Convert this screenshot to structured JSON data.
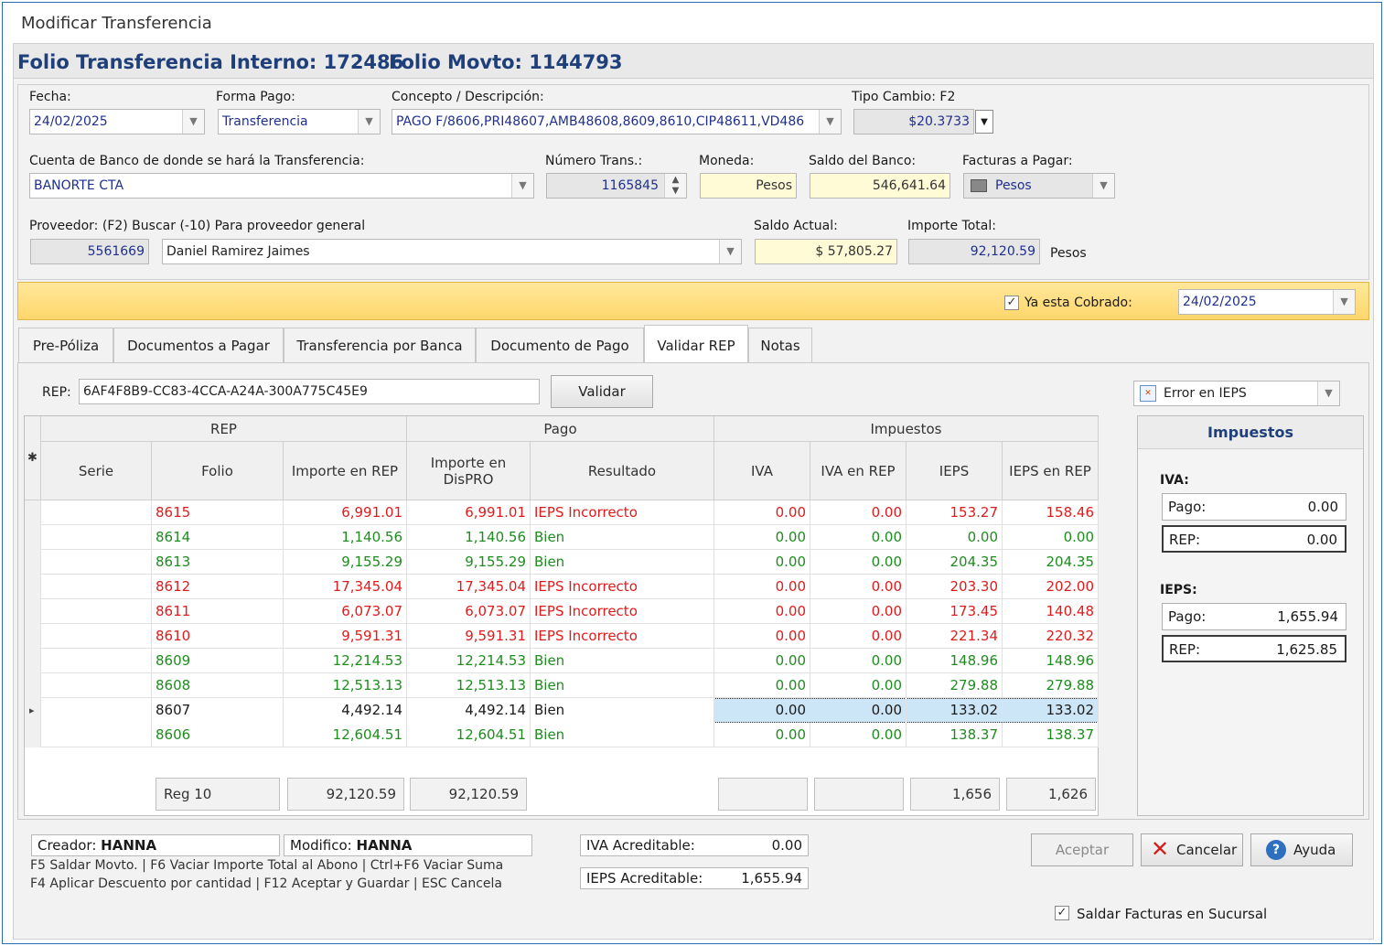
{
  "window": {
    "title": "Modificar Transferencia"
  },
  "folio": {
    "interno": "Folio Transferencia Interno: 172486",
    "movto": "Folio Movto: 1144793"
  },
  "header": {
    "fecha_label": "Fecha:",
    "fecha": "24/02/2025",
    "forma_pago_label": "Forma Pago:",
    "forma_pago": "Transferencia",
    "concepto_label": "Concepto / Descripción:",
    "concepto": "PAGO F/8606,PRI48607,AMB48608,8609,8610,CIP48611,VD486",
    "tipo_cambio_label": "Tipo Cambio: F2",
    "tipo_cambio": "$20.3733",
    "cuenta_label": "Cuenta de Banco de donde se hará la Transferencia:",
    "cuenta": "BANORTE CTA",
    "num_trans_label": "Número Trans.:",
    "num_trans": "1165845",
    "moneda_label": "Moneda:",
    "moneda": "Pesos",
    "saldo_banco_label": "Saldo del Banco:",
    "saldo_banco": "546,641.64",
    "facturas_label": "Facturas a Pagar:",
    "facturas": "Pesos",
    "proveedor_label": "Proveedor: (F2) Buscar   (-10) Para proveedor general",
    "proveedor_id": "5561669",
    "proveedor_nombre": "Daniel Ramirez Jaimes",
    "saldo_actual_label": "Saldo Actual:",
    "saldo_actual": "$ 57,805.27",
    "importe_total_label": "Importe Total:",
    "importe_total": "92,120.59",
    "importe_moneda": "Pesos"
  },
  "cobrado": {
    "label": "Ya esta Cobrado:",
    "fecha": "24/02/2025",
    "checked": true
  },
  "tabs": [
    "Pre-Póliza",
    "Documentos a Pagar",
    "Transferencia por Banca",
    "Documento de Pago",
    "Validar REP",
    "Notas"
  ],
  "rep": {
    "label": "REP:",
    "value": "6AF4F8B9-CC83-4CCA-A24A-300A775C45E9",
    "validar": "Validar",
    "filtro": "Error en IEPS"
  },
  "grid": {
    "groups": {
      "rep": "REP",
      "pago": "Pago",
      "impuestos": "Impuestos"
    },
    "columns": [
      "Serie",
      "Folio",
      "Importe en REP",
      "Importe en DisPRO",
      "Resultado",
      "IVA",
      "IVA en REP",
      "IEPS",
      "IEPS en REP"
    ],
    "rows": [
      {
        "folio": "8615",
        "imp_rep": "6,991.01",
        "imp_dis": "6,991.01",
        "resultado": "IEPS Incorrecto",
        "iva": "0.00",
        "iva_rep": "0.00",
        "ieps": "153.27",
        "ieps_rep": "158.46",
        "status": "bad"
      },
      {
        "folio": "8614",
        "imp_rep": "1,140.56",
        "imp_dis": "1,140.56",
        "resultado": "Bien",
        "iva": "0.00",
        "iva_rep": "0.00",
        "ieps": "0.00",
        "ieps_rep": "0.00",
        "status": "ok"
      },
      {
        "folio": "8613",
        "imp_rep": "9,155.29",
        "imp_dis": "9,155.29",
        "resultado": "Bien",
        "iva": "0.00",
        "iva_rep": "0.00",
        "ieps": "204.35",
        "ieps_rep": "204.35",
        "status": "ok"
      },
      {
        "folio": "8612",
        "imp_rep": "17,345.04",
        "imp_dis": "17,345.04",
        "resultado": "IEPS Incorrecto",
        "iva": "0.00",
        "iva_rep": "0.00",
        "ieps": "203.30",
        "ieps_rep": "202.00",
        "status": "bad"
      },
      {
        "folio": "8611",
        "imp_rep": "6,073.07",
        "imp_dis": "6,073.07",
        "resultado": "IEPS Incorrecto",
        "iva": "0.00",
        "iva_rep": "0.00",
        "ieps": "173.45",
        "ieps_rep": "140.48",
        "status": "bad"
      },
      {
        "folio": "8610",
        "imp_rep": "9,591.31",
        "imp_dis": "9,591.31",
        "resultado": "IEPS Incorrecto",
        "iva": "0.00",
        "iva_rep": "0.00",
        "ieps": "221.34",
        "ieps_rep": "220.32",
        "status": "bad"
      },
      {
        "folio": "8609",
        "imp_rep": "12,214.53",
        "imp_dis": "12,214.53",
        "resultado": "Bien",
        "iva": "0.00",
        "iva_rep": "0.00",
        "ieps": "148.96",
        "ieps_rep": "148.96",
        "status": "ok"
      },
      {
        "folio": "8608",
        "imp_rep": "12,513.13",
        "imp_dis": "12,513.13",
        "resultado": "Bien",
        "iva": "0.00",
        "iva_rep": "0.00",
        "ieps": "279.88",
        "ieps_rep": "279.88",
        "status": "ok"
      },
      {
        "folio": "8607",
        "imp_rep": "4,492.14",
        "imp_dis": "4,492.14",
        "resultado": "Bien",
        "iva": "0.00",
        "iva_rep": "0.00",
        "ieps": "133.02",
        "ieps_rep": "133.02",
        "status": "ok"
      },
      {
        "folio": "8606",
        "imp_rep": "12,604.51",
        "imp_dis": "12,604.51",
        "resultado": "Bien",
        "iva": "0.00",
        "iva_rep": "0.00",
        "ieps": "138.37",
        "ieps_rep": "138.37",
        "status": "ok"
      }
    ],
    "footer": {
      "reg": "Reg 10",
      "imp_rep": "92,120.59",
      "imp_dis": "92,120.59",
      "ieps": "1,656",
      "ieps_rep": "1,626"
    }
  },
  "impuestos": {
    "title": "Impuestos",
    "iva_label": "IVA:",
    "iva_pago_label": "Pago:",
    "iva_pago": "0.00",
    "iva_rep_label": "REP:",
    "iva_rep": "0.00",
    "ieps_label": "IEPS:",
    "ieps_pago_label": "Pago:",
    "ieps_pago": "1,655.94",
    "ieps_rep_label": "REP:",
    "ieps_rep": "1,625.85"
  },
  "status": {
    "creador_label": "Creador:",
    "creador": "HANNA",
    "modifico_label": "Modifico:",
    "modifico": "HANNA",
    "shortcuts1": "F5 Saldar Movto. | F6 Vaciar Importe Total al Abono | Ctrl+F6 Vaciar Suma",
    "shortcuts2": "F4 Aplicar Descuento por cantidad | F12 Aceptar y Guardar | ESC Cancela",
    "iva_acred_label": "IVA Acreditable:",
    "iva_acred": "0.00",
    "ieps_acred_label": "IEPS Acreditable:",
    "ieps_acred": "1,655.94"
  },
  "buttons": {
    "aceptar": "Aceptar",
    "cancelar": "Cancelar",
    "ayuda": "Ayuda"
  },
  "saldar": {
    "label": "Saldar Facturas en Sucursal",
    "checked": true
  }
}
